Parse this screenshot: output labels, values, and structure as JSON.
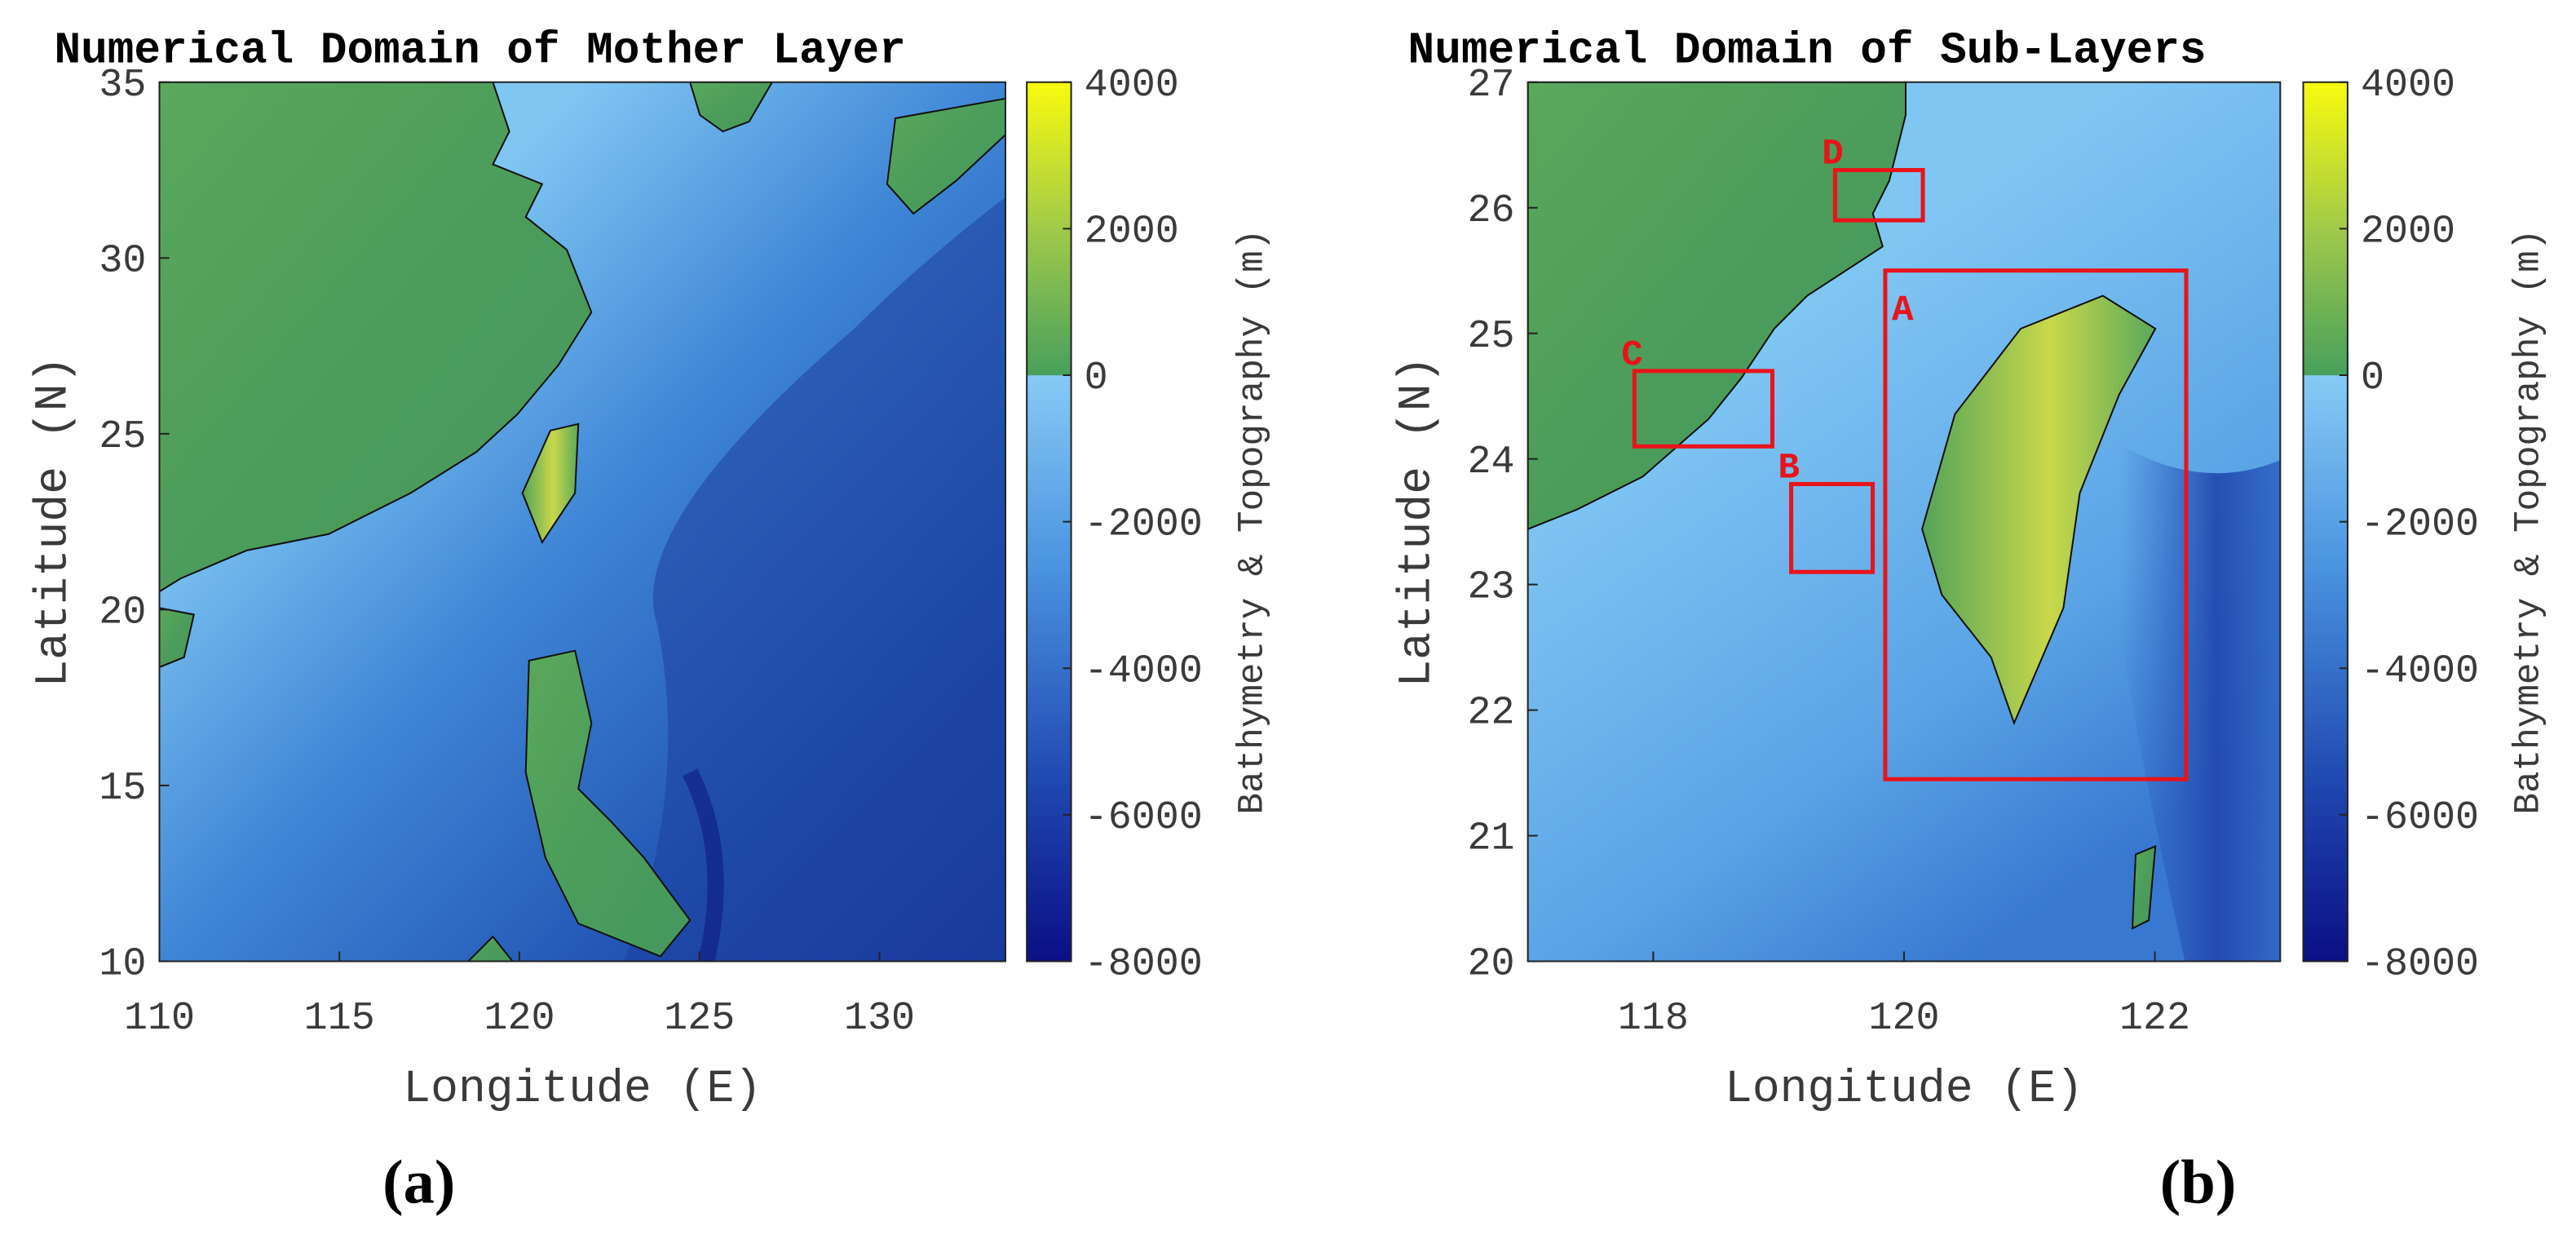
{
  "panels": [
    {
      "title": "Numerical Domain of Mother Layer",
      "x_label": "Longitude (E)",
      "y_label": "Latitude (N)",
      "xlim": [
        110,
        133.5
      ],
      "ylim": [
        10,
        35
      ],
      "xticks": [
        110,
        115,
        120,
        125,
        130
      ],
      "yticks": [
        10,
        15,
        20,
        25,
        30,
        35
      ],
      "colorbar": {
        "label": "Bathymetry & Topography (m)",
        "lim": [
          -8000,
          4000
        ],
        "ticks": [
          -8000,
          -6000,
          -4000,
          -2000,
          0,
          2000,
          4000
        ]
      },
      "caption": "(a)"
    },
    {
      "title": "Numerical Domain of Sub-Layers",
      "x_label": "Longitude (E)",
      "y_label": "Latitude (N)",
      "xlim": [
        117,
        123
      ],
      "ylim": [
        20,
        27
      ],
      "xticks": [
        118,
        120,
        122
      ],
      "yticks": [
        20,
        21,
        22,
        23,
        24,
        25,
        26,
        27
      ],
      "colorbar": {
        "label": "Bathymetry & Topography (m)",
        "lim": [
          -8000,
          4000
        ],
        "ticks": [
          -8000,
          -6000,
          -4000,
          -2000,
          0,
          2000,
          4000
        ]
      },
      "boxes": [
        {
          "label": "A",
          "lon": [
            119.85,
            122.25
          ],
          "lat": [
            21.45,
            25.5
          ]
        },
        {
          "label": "B",
          "lon": [
            119.1,
            119.75
          ],
          "lat": [
            23.1,
            23.8
          ]
        },
        {
          "label": "C",
          "lon": [
            117.85,
            118.95
          ],
          "lat": [
            24.1,
            24.7
          ]
        },
        {
          "label": "D",
          "lon": [
            119.45,
            120.15
          ],
          "lat": [
            25.9,
            26.3
          ]
        }
      ],
      "caption": "(b)"
    }
  ]
}
